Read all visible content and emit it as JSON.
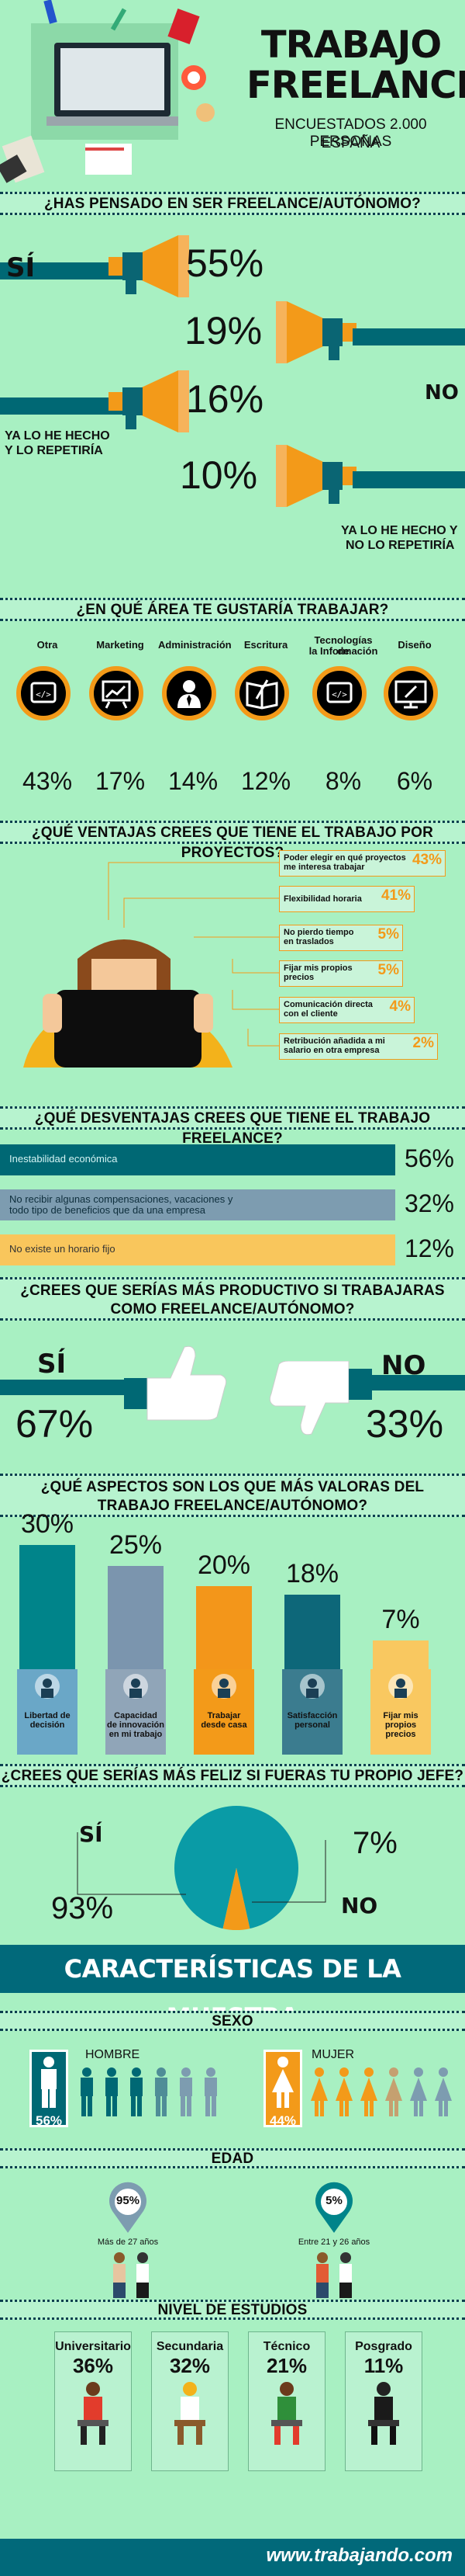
{
  "header": {
    "title_line1": "TRABAJO",
    "title_line2": "FREELANCE",
    "subtitle_line1": "ENCUESTADOS 2.000 PERSONAS",
    "subtitle_line2": "ESPAÑA"
  },
  "q1": {
    "title": "¿HAS PENSADO EN SER FREELANCE/AUTÓNOMO?",
    "answers": [
      {
        "label": "SÍ",
        "pct": "55%"
      },
      {
        "label": "NO",
        "pct": "19%"
      },
      {
        "label_line1": "YA LO HE HECHO",
        "label_line2": "Y LO REPETIRÍA",
        "pct": "16%"
      },
      {
        "label_line1": "YA LO HE HECHO Y",
        "label_line2": "NO LO REPETIRÍA",
        "pct": "10%"
      }
    ]
  },
  "q2": {
    "title": "¿EN QUÉ ÁREA TE GUSTARÍA TRABAJAR?",
    "areas": [
      {
        "label": "Otra",
        "pct": "43%",
        "icon": "code-icon"
      },
      {
        "label": "Marketing",
        "pct": "17%",
        "icon": "chart-board-icon"
      },
      {
        "label": "Administración",
        "pct": "14%",
        "icon": "businessman-icon"
      },
      {
        "label": "Escritura",
        "pct": "12%",
        "icon": "book-icon"
      },
      {
        "label_line1": "Tecnologías de",
        "label_line2": "la Información",
        "pct": "8%",
        "icon": "code-icon"
      },
      {
        "label": "Diseño",
        "pct": "6%",
        "icon": "design-monitor-icon"
      }
    ]
  },
  "q3": {
    "title": "¿QUÉ VENTAJAS CREES QUE TIENE EL TRABAJO POR PROYECTOS?",
    "items": [
      {
        "line1": "Poder elegir en qué proyectos",
        "line2": "me interesa trabajar",
        "pct": "43%"
      },
      {
        "line1": "Flexibilidad horaria",
        "line2": "",
        "pct": "41%"
      },
      {
        "line1": "No pierdo tiempo",
        "line2": "en traslados",
        "pct": "5%"
      },
      {
        "line1": "Fijar mis propios",
        "line2": "precios",
        "pct": "5%"
      },
      {
        "line1": "Comunicación directa",
        "line2": "con el cliente",
        "pct": "4%"
      },
      {
        "line1": "Retribución añadida a mi",
        "line2": "salario en otra empresa",
        "pct": "2%"
      }
    ]
  },
  "q4": {
    "title": "¿QUÉ DESVENTAJAS CREES QUE TIENE EL TRABAJO FREELANCE?",
    "items": [
      {
        "line1": "Inestabilidad económica",
        "line2": "",
        "pct": "56%",
        "color": "#006874",
        "value": 56
      },
      {
        "line1": "No recibir algunas compensaciones, vacaciones y",
        "line2": "todo tipo de beneficios que da una empresa",
        "pct": "32%",
        "color": "#7d9cb0",
        "value": 32
      },
      {
        "line1": "No existe un horario fijo",
        "line2": "",
        "pct": "12%",
        "color": "#f9c65c",
        "value": 12
      }
    ]
  },
  "q5": {
    "title_line1": "¿CREES QUE SERÍAS MÁS PRODUCTIVO SI TRABAJARAS",
    "title_line2": "COMO FREELANCE/AUTÓNOMO?",
    "yes_label": "SÍ",
    "yes_pct": "67%",
    "no_label": "NO",
    "no_pct": "33%"
  },
  "q6": {
    "title_line1": "¿QUÉ ASPECTOS SON LOS QUE MÁS VALORAS DEL",
    "title_line2": "TRABAJO FREELANCE/AUTÓNOMO?",
    "aspects": [
      {
        "pct": "30%",
        "value": 30,
        "line1": "Libertad de",
        "line2": "decisión",
        "line3": "",
        "color": "#00848a",
        "box": "#6aa7c7"
      },
      {
        "pct": "25%",
        "value": 25,
        "line1": "Capacidad",
        "line2": "de innovación",
        "line3": "en mi trabajo",
        "color": "#7b95ae",
        "box": "#90a5b8"
      },
      {
        "pct": "20%",
        "value": 20,
        "line1": "Trabajar",
        "line2": "desde casa",
        "line3": "",
        "color": "#f3961a",
        "box": "#f39a19"
      },
      {
        "pct": "18%",
        "value": 18,
        "line1": "Satisfacción",
        "line2": "personal",
        "line3": "",
        "color": "#0d6779",
        "box": "#3b7c8f"
      },
      {
        "pct": "7%",
        "value": 7,
        "line1": "Fijar mis",
        "line2": "propios",
        "line3": "precios",
        "color": "#f9c860",
        "box": "#f9c860"
      }
    ]
  },
  "q7": {
    "title": "¿CREES QUE SERÍAS MÁS FELIZ SI FUERAS TU PROPIO JEFE?",
    "yes_label": "SÍ",
    "yes_pct": "93%",
    "no_label": "NO",
    "no_pct": "7%",
    "yes_value": 93,
    "no_value": 7
  },
  "sample": {
    "title": "CARACTERÍSTICAS DE LA MUESTRA",
    "sexo_title": "SEXO",
    "hombre_label": "HOMBRE",
    "hombre_pct": "56%",
    "mujer_label": "MUJER",
    "mujer_pct": "44%",
    "edad_title": "EDAD",
    "edad_a_pct": "95%",
    "edad_a_label": "Más de 27 años",
    "edad_b_pct": "5%",
    "edad_b_label": "Entre 21 y 26 años",
    "estudios_title": "NIVEL DE ESTUDIOS",
    "estudios": [
      {
        "label": "Universitario",
        "pct": "36%"
      },
      {
        "label": "Secundaria",
        "pct": "32%"
      },
      {
        "label": "Técnico",
        "pct": "21%"
      },
      {
        "label": "Posgrado",
        "pct": "11%"
      }
    ]
  },
  "footer": {
    "brand": "www.trabajando.com"
  }
}
